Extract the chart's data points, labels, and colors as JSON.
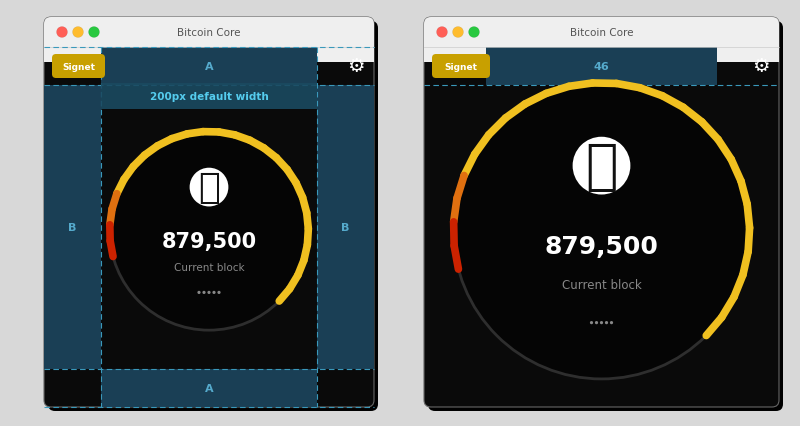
{
  "bg_color": "#d8d8d8",
  "window_bg": "#0a0a0a",
  "titlebar_bg": "#efefef",
  "titlebar_text": "Bitcoin Core",
  "titlebar_text_color": "#555555",
  "signet_bg": "#c8a000",
  "signet_text": "Signet",
  "signet_text_color": "#ffffff",
  "gear_color": "#ffffff",
  "block_number": "879,500",
  "block_label": "Current block",
  "block_number_color": "#ffffff",
  "block_label_color": "#888888",
  "dashed_line_color": "#3a99bb",
  "grid_highlight_color": "#1a3f55",
  "circle_track_color": "#2e2e2e",
  "circle_yellow_color": "#f0c020",
  "circle_orange_color": "#e07010",
  "circle_red_color": "#cc2200",
  "bitcoin_icon_bg": "#ffffff",
  "bitcoin_icon_color": "#111111",
  "label_color": "#55aacc",
  "hint_text": "200px default width",
  "hint_text_color": "#55ccee",
  "hint_bg_color": "#1a4a60",
  "dots_color": "#888888",
  "btn_red": "#ff5f57",
  "btn_yellow": "#febc2e",
  "btn_green": "#28c840"
}
